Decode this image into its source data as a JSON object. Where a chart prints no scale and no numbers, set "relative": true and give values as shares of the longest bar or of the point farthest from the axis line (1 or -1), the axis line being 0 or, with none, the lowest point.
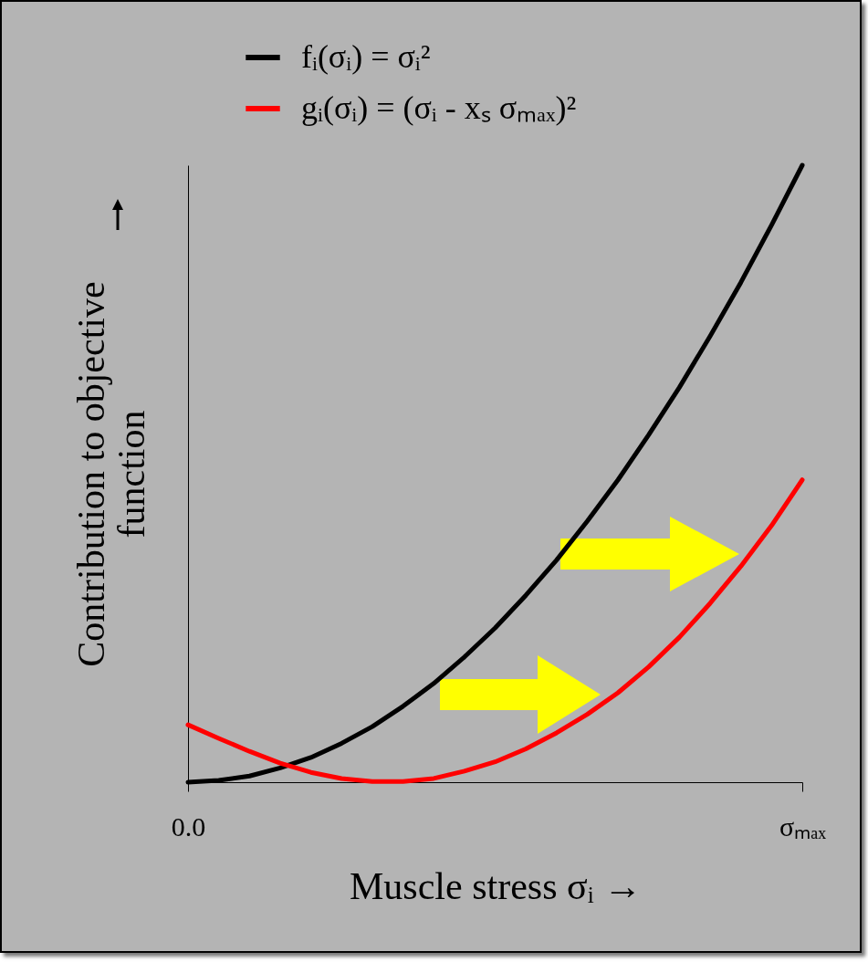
{
  "chart_data": {
    "type": "line",
    "relative": true,
    "xlabel": "Muscle stress σᵢ →",
    "ylabel": "Contribution to objective function",
    "categories": [
      "0.0",
      null,
      null,
      null,
      null,
      null,
      null,
      null,
      null,
      null,
      null,
      null,
      null,
      null,
      null,
      null,
      null,
      null,
      null,
      null,
      "σₘₐₓ"
    ],
    "series": [
      {
        "name": "fᵢ(σᵢ) = σᵢ²",
        "color": "#000000",
        "values": [
          0,
          0.003,
          0.01,
          0.023,
          0.04,
          0.063,
          0.09,
          0.123,
          0.16,
          0.203,
          0.25,
          0.303,
          0.36,
          0.423,
          0.49,
          0.563,
          0.64,
          0.723,
          0.81,
          0.903,
          1
        ]
      },
      {
        "name": "gᵢ(σᵢ) = (σᵢ - xₛ σₘₐₓ)²",
        "color": "#ff0000",
        "values": [
          0.093,
          0.071,
          0.05,
          0.031,
          0.016,
          0.006,
          0.001,
          0.001,
          0.006,
          0.018,
          0.033,
          0.054,
          0.08,
          0.11,
          0.145,
          0.187,
          0.235,
          0.29,
          0.35,
          0.416,
          0.49
        ]
      }
    ],
    "legend": "top",
    "grid": false,
    "line_style": "solid",
    "marker": "none"
  }
}
